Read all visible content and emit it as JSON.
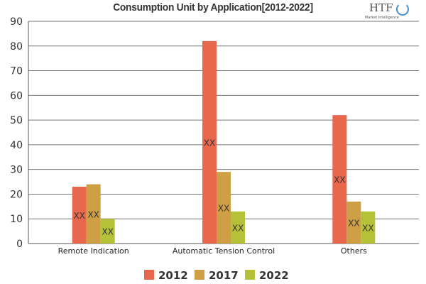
{
  "chart_data": {
    "type": "bar",
    "title": "Consumption Unit by  Application[2012-2022]",
    "categories": [
      "Remote Indication",
      "Automatic Tension Control",
      "Others"
    ],
    "series": [
      {
        "name": "2012",
        "color": "#e8684e",
        "values": [
          23,
          82,
          52
        ]
      },
      {
        "name": "2017",
        "color": "#cf9f45",
        "values": [
          24,
          29,
          17
        ]
      },
      {
        "name": "2022",
        "color": "#b6c13a",
        "values": [
          10,
          13,
          13
        ]
      }
    ],
    "data_label": "XX",
    "yticks": [
      0,
      10,
      20,
      30,
      40,
      50,
      60,
      70,
      80,
      90
    ],
    "ylim": [
      0,
      90
    ],
    "grid": true,
    "legend": "bottom"
  },
  "logo": {
    "text": "HTF",
    "subtext": "Market Intelligence"
  }
}
